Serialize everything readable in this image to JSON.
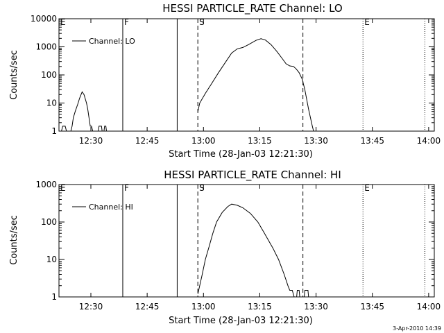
{
  "footer": {
    "timestamp": "3-Apr-2010 14:39"
  },
  "chart_data": [
    {
      "type": "line",
      "title": "HESSI PARTICLE_RATE Channel: LO",
      "xlabel": "Start Time (28-Jan-03 12:21:30)",
      "ylabel": "Counts/sec",
      "yscale": "log",
      "xlim": [
        "12:21:30",
        "14:01:30"
      ],
      "ylim": [
        1,
        10000
      ],
      "x_ticks": [
        "12:30",
        "12:45",
        "13:00",
        "13:15",
        "13:30",
        "13:45",
        "14:00"
      ],
      "y_ticks": [
        "1",
        "10",
        "100",
        "1000",
        "10000"
      ],
      "legend": {
        "placement": "top-left",
        "label": "Channel: LO"
      },
      "markers": [
        {
          "label": "E",
          "time": "12:21:30",
          "style": "dotted"
        },
        {
          "label": "F",
          "time": "12:38:30",
          "style": "solid"
        },
        {
          "label": "",
          "time": "12:53:00",
          "style": "solid"
        },
        {
          "label": "S",
          "time": "12:58:30",
          "style": "dashed"
        },
        {
          "label": "",
          "time": "13:26:30",
          "style": "dashed"
        },
        {
          "label": "E",
          "time": "13:42:30",
          "style": "dotted"
        },
        {
          "label": "",
          "time": "13:59:00",
          "style": "dotted"
        }
      ],
      "series": [
        {
          "name": "Channel: LO",
          "segments": [
            [
              [
                "12:21:30",
                1
              ],
              [
                "12:22:10",
                1
              ],
              [
                "12:22:30",
                1.5
              ],
              [
                "12:23:10",
                1.5
              ],
              [
                "12:23:30",
                1
              ],
              [
                "12:24:40",
                1
              ],
              [
                "12:25:00",
                1.5
              ],
              [
                "12:25:20",
                3
              ],
              [
                "12:25:50",
                5
              ],
              [
                "12:26:30",
                9
              ],
              [
                "12:27:00",
                15
              ],
              [
                "12:27:40",
                25
              ],
              [
                "12:28:10",
                20
              ],
              [
                "12:28:50",
                10
              ],
              [
                "12:29:10",
                6
              ],
              [
                "12:29:30",
                3
              ],
              [
                "12:29:50",
                1.5
              ],
              [
                "12:30:10",
                1.5
              ],
              [
                "12:30:30",
                1
              ],
              [
                "12:32:00",
                1
              ],
              [
                "12:32:10",
                1.5
              ],
              [
                "12:32:50",
                1.5
              ],
              [
                "12:33:00",
                1
              ],
              [
                "12:33:30",
                1
              ],
              [
                "12:33:40",
                1.5
              ],
              [
                "12:34:00",
                1.5
              ],
              [
                "12:34:10",
                1
              ]
            ],
            [
              [
                "12:58:30",
                5
              ],
              [
                "12:59:00",
                10
              ],
              [
                "13:00:30",
                22
              ],
              [
                "13:02:00",
                45
              ],
              [
                "13:04:00",
                120
              ],
              [
                "13:06:00",
                300
              ],
              [
                "13:07:30",
                600
              ],
              [
                "13:09:00",
                850
              ],
              [
                "13:10:30",
                950
              ],
              [
                "13:12:00",
                1200
              ],
              [
                "13:14:00",
                1700
              ],
              [
                "13:15:20",
                1950
              ],
              [
                "13:16:30",
                1750
              ],
              [
                "13:18:00",
                1200
              ],
              [
                "13:19:30",
                700
              ],
              [
                "13:21:00",
                380
              ],
              [
                "13:22:00",
                250
              ],
              [
                "13:23:00",
                210
              ],
              [
                "13:24:00",
                200
              ],
              [
                "13:24:45",
                160
              ],
              [
                "13:25:30",
                120
              ],
              [
                "13:26:20",
                70
              ],
              [
                "13:27:00",
                30
              ],
              [
                "13:28:00",
                6
              ],
              [
                "13:29:00",
                1.5
              ],
              [
                "13:29:20",
                1
              ]
            ]
          ]
        }
      ]
    },
    {
      "type": "line",
      "title": "HESSI PARTICLE_RATE Channel: HI",
      "xlabel": "Start Time (28-Jan-03 12:21:30)",
      "ylabel": "Counts/sec",
      "yscale": "log",
      "xlim": [
        "12:21:30",
        "14:01:30"
      ],
      "ylim": [
        1,
        1000
      ],
      "x_ticks": [
        "12:30",
        "12:45",
        "13:00",
        "13:15",
        "13:30",
        "13:45",
        "14:00"
      ],
      "y_ticks": [
        "1",
        "10",
        "100",
        "1000"
      ],
      "legend": {
        "placement": "top-left",
        "label": "Channel: HI"
      },
      "markers": [
        {
          "label": "E",
          "time": "12:21:30",
          "style": "dotted"
        },
        {
          "label": "F",
          "time": "12:38:30",
          "style": "solid"
        },
        {
          "label": "",
          "time": "12:53:00",
          "style": "solid"
        },
        {
          "label": "S",
          "time": "12:58:30",
          "style": "dashed"
        },
        {
          "label": "",
          "time": "13:26:30",
          "style": "dashed"
        },
        {
          "label": "E",
          "time": "13:42:30",
          "style": "dotted"
        },
        {
          "label": "",
          "time": "13:59:00",
          "style": "dotted"
        }
      ],
      "series": [
        {
          "name": "Channel: HI",
          "segments": [
            [
              [
                "12:58:30",
                1.2
              ],
              [
                "12:59:00",
                2
              ],
              [
                "12:59:40",
                4
              ],
              [
                "13:00:30",
                10
              ],
              [
                "13:01:30",
                22
              ],
              [
                "13:02:30",
                50
              ],
              [
                "13:03:30",
                100
              ],
              [
                "13:05:00",
                180
              ],
              [
                "13:06:30",
                260
              ],
              [
                "13:07:30",
                300
              ],
              [
                "13:09:00",
                280
              ],
              [
                "13:10:30",
                240
              ],
              [
                "13:12:30",
                170
              ],
              [
                "13:14:30",
                100
              ],
              [
                "13:16:30",
                45
              ],
              [
                "13:18:30",
                20
              ],
              [
                "13:20:00",
                10
              ],
              [
                "13:21:30",
                4
              ],
              [
                "13:22:30",
                2
              ],
              [
                "13:23:00",
                1.5
              ],
              [
                "13:23:40",
                1.5
              ],
              [
                "13:24:10",
                1
              ],
              [
                "13:24:50",
                1
              ],
              [
                "13:25:00",
                1.5
              ],
              [
                "13:25:30",
                1.5
              ],
              [
                "13:25:40",
                1
              ],
              [
                "13:26:50",
                1
              ],
              [
                "13:27:00",
                1.5
              ],
              [
                "13:27:50",
                1.5
              ],
              [
                "13:28:00",
                1
              ],
              [
                "13:28:30",
                1
              ]
            ]
          ]
        }
      ]
    }
  ]
}
